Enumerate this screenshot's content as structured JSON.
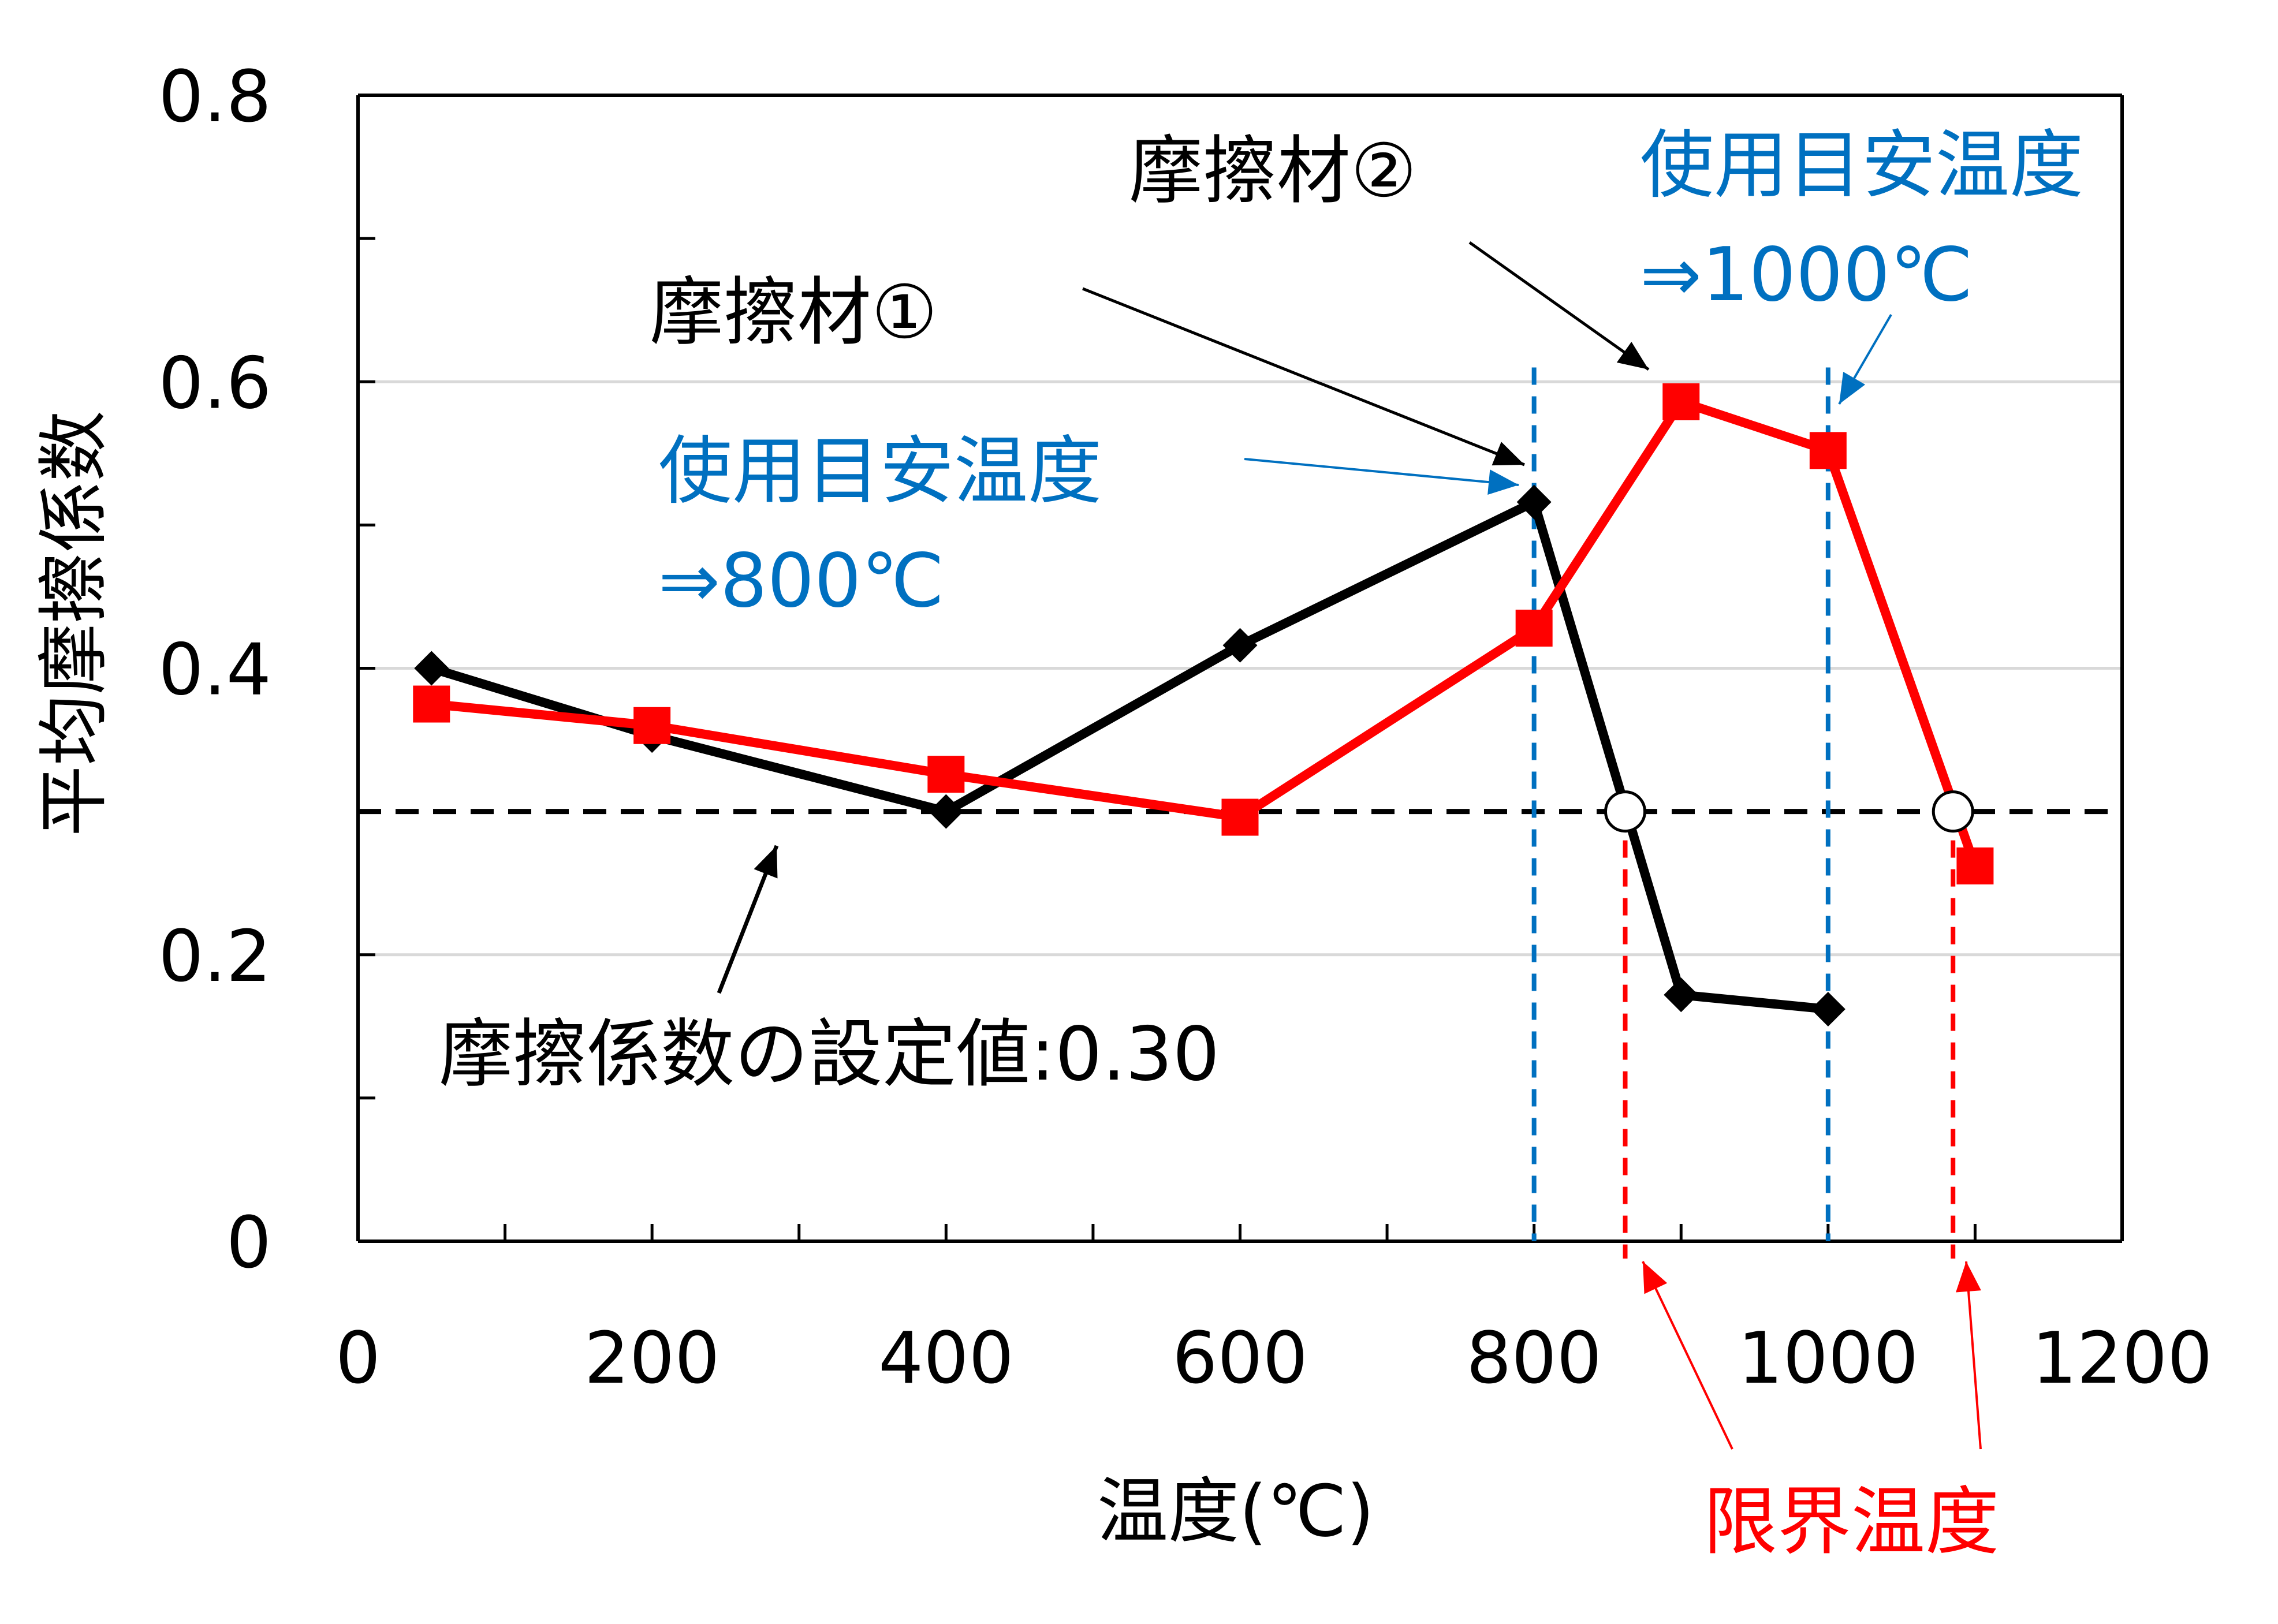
{
  "chart_data": {
    "type": "line",
    "title": "",
    "xlabel": "温度(℃)",
    "ylabel": "平均摩擦係数",
    "xlim": [
      0,
      1200
    ],
    "ylim": [
      0,
      0.8
    ],
    "xticks": [
      0,
      200,
      400,
      600,
      800,
      1000,
      1200
    ],
    "xtick_labels": [
      "0",
      "200",
      "400",
      "600",
      "800",
      "1000",
      "1200"
    ],
    "yticks": [
      0,
      0.2,
      0.4,
      0.6,
      0.8
    ],
    "ytick_labels": [
      "0",
      "0.2",
      "0.4",
      "0.6",
      "0.8"
    ],
    "grid": "horizontal",
    "series": [
      {
        "name": "摩擦材①",
        "color": "#000000",
        "marker": "diamond",
        "x": [
          50,
          200,
          400,
          600,
          800,
          900,
          1000
        ],
        "y": [
          0.4,
          0.353,
          0.3,
          0.416,
          0.516,
          0.172,
          0.162
        ]
      },
      {
        "name": "摩擦材②",
        "color": "#ff0000",
        "marker": "square",
        "x": [
          50,
          200,
          400,
          600,
          800,
          900,
          1000,
          1100
        ],
        "y": [
          0.375,
          0.36,
          0.326,
          0.296,
          0.428,
          0.586,
          0.552,
          0.262
        ]
      }
    ],
    "reference_line": {
      "y": 0.3,
      "label": "摩擦係数の設定値:0.30",
      "style": "dashed",
      "color": "#000000"
    },
    "limit_points": [
      {
        "x": 862,
        "y": 0.3,
        "color": "#ff0000"
      },
      {
        "x": 1085,
        "y": 0.3,
        "color": "#ff0000"
      }
    ],
    "usage_lines": [
      {
        "x": 800,
        "color": "#0070c0"
      },
      {
        "x": 1000,
        "color": "#0070c0"
      }
    ],
    "annotations": {
      "material1": "摩擦材①",
      "material2": "摩擦材②",
      "usage1_line1": "使用目安温度",
      "usage1_line2": "⇒800℃",
      "usage2_line1": "使用目安温度",
      "usage2_line2": "⇒1000℃",
      "limit_temp": "限界温度"
    },
    "colors": {
      "blue": "#0070c0",
      "red": "#ff0000",
      "black": "#000000"
    }
  }
}
